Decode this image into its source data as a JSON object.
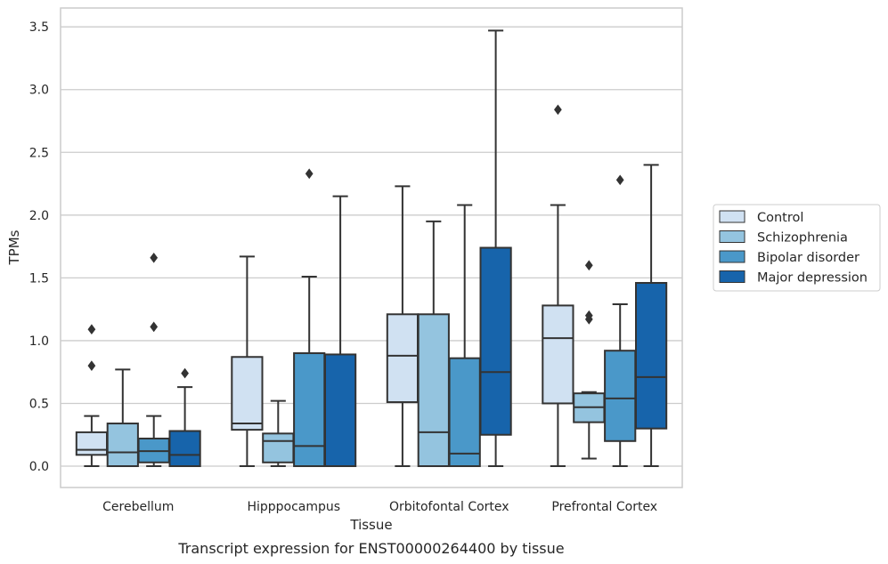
{
  "chart_data": {
    "type": "box",
    "caption": "Transcript expression for ENST00000264400 by tissue",
    "xlabel": "Tissue",
    "ylabel": "TPMs",
    "ylim": [
      -0.17,
      3.65
    ],
    "yticks": [
      0.0,
      0.5,
      1.0,
      1.5,
      2.0,
      2.5,
      3.0,
      3.5
    ],
    "ytick_labels": [
      "0.0",
      "0.5",
      "1.0",
      "1.5",
      "2.0",
      "2.5",
      "3.0",
      "3.5"
    ],
    "grid": "horizontal",
    "legend_position": "right",
    "categories": [
      "Cerebellum",
      "Hipppocampus",
      "Orbitofontal Cortex",
      "Prefrontal Cortex"
    ],
    "series": [
      {
        "name": "Control",
        "color": "#d0e1f2",
        "boxes": [
          {
            "min": 0.0,
            "q1": 0.09,
            "median": 0.13,
            "q3": 0.27,
            "max": 0.4,
            "outliers": [
              0.8,
              1.09
            ]
          },
          {
            "min": 0.0,
            "q1": 0.29,
            "median": 0.34,
            "q3": 0.87,
            "max": 1.67,
            "outliers": []
          },
          {
            "min": 0.0,
            "q1": 0.51,
            "median": 0.88,
            "q3": 1.21,
            "max": 2.23,
            "outliers": []
          },
          {
            "min": 0.0,
            "q1": 0.5,
            "median": 1.02,
            "q3": 1.28,
            "max": 2.08,
            "outliers": [
              2.84
            ]
          }
        ]
      },
      {
        "name": "Schizophrenia",
        "color": "#94c4df",
        "boxes": [
          {
            "min": 0.0,
            "q1": 0.0,
            "median": 0.11,
            "q3": 0.34,
            "max": 0.77,
            "outliers": []
          },
          {
            "min": 0.0,
            "q1": 0.03,
            "median": 0.2,
            "q3": 0.26,
            "max": 0.52,
            "outliers": []
          },
          {
            "min": 0.0,
            "q1": 0.0,
            "median": 0.27,
            "q3": 1.21,
            "max": 1.95,
            "outliers": []
          },
          {
            "min": 0.06,
            "q1": 0.35,
            "median": 0.47,
            "q3": 0.58,
            "max": 0.59,
            "outliers": [
              1.17,
              1.2,
              1.6
            ]
          }
        ]
      },
      {
        "name": "Bipolar disorder",
        "color": "#4a98c9",
        "boxes": [
          {
            "min": 0.0,
            "q1": 0.03,
            "median": 0.12,
            "q3": 0.22,
            "max": 0.4,
            "outliers": [
              1.11,
              1.66
            ]
          },
          {
            "min": 0.0,
            "q1": 0.0,
            "median": 0.16,
            "q3": 0.9,
            "max": 1.51,
            "outliers": [
              2.33
            ]
          },
          {
            "min": 0.0,
            "q1": 0.0,
            "median": 0.1,
            "q3": 0.86,
            "max": 2.08,
            "outliers": []
          },
          {
            "min": 0.0,
            "q1": 0.2,
            "median": 0.54,
            "q3": 0.92,
            "max": 1.29,
            "outliers": [
              2.28
            ]
          }
        ]
      },
      {
        "name": "Major depression",
        "color": "#1764ab",
        "boxes": [
          {
            "min": 0.0,
            "q1": 0.0,
            "median": 0.09,
            "q3": 0.28,
            "max": 0.63,
            "outliers": [
              0.74
            ]
          },
          {
            "min": 0.0,
            "q1": 0.0,
            "median": 0.0,
            "q3": 0.89,
            "max": 2.15,
            "outliers": []
          },
          {
            "min": 0.0,
            "q1": 0.25,
            "median": 0.75,
            "q3": 1.74,
            "max": 3.47,
            "outliers": []
          },
          {
            "min": 0.0,
            "q1": 0.3,
            "median": 0.71,
            "q3": 1.46,
            "max": 2.4,
            "outliers": []
          }
        ]
      }
    ]
  }
}
